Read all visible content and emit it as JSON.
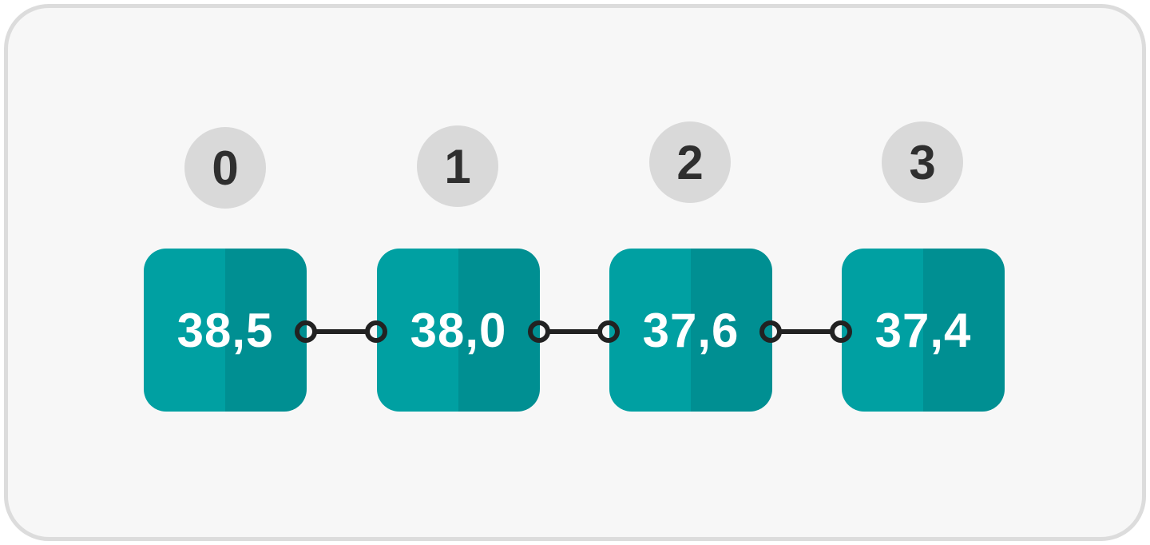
{
  "nodes": [
    {
      "index": "0",
      "value": "38,5"
    },
    {
      "index": "1",
      "value": "38,0"
    },
    {
      "index": "2",
      "value": "37,6"
    },
    {
      "index": "3",
      "value": "37,4"
    }
  ],
  "colors": {
    "panel_bg": "#f7f7f7",
    "panel_border": "#dcdcdc",
    "badge_bg": "#d9d9d9",
    "badge_text": "#2f2f2f",
    "node_light": "#00a0a2",
    "node_dark": "#008f92",
    "node_text": "#ffffff",
    "link": "#222222"
  }
}
